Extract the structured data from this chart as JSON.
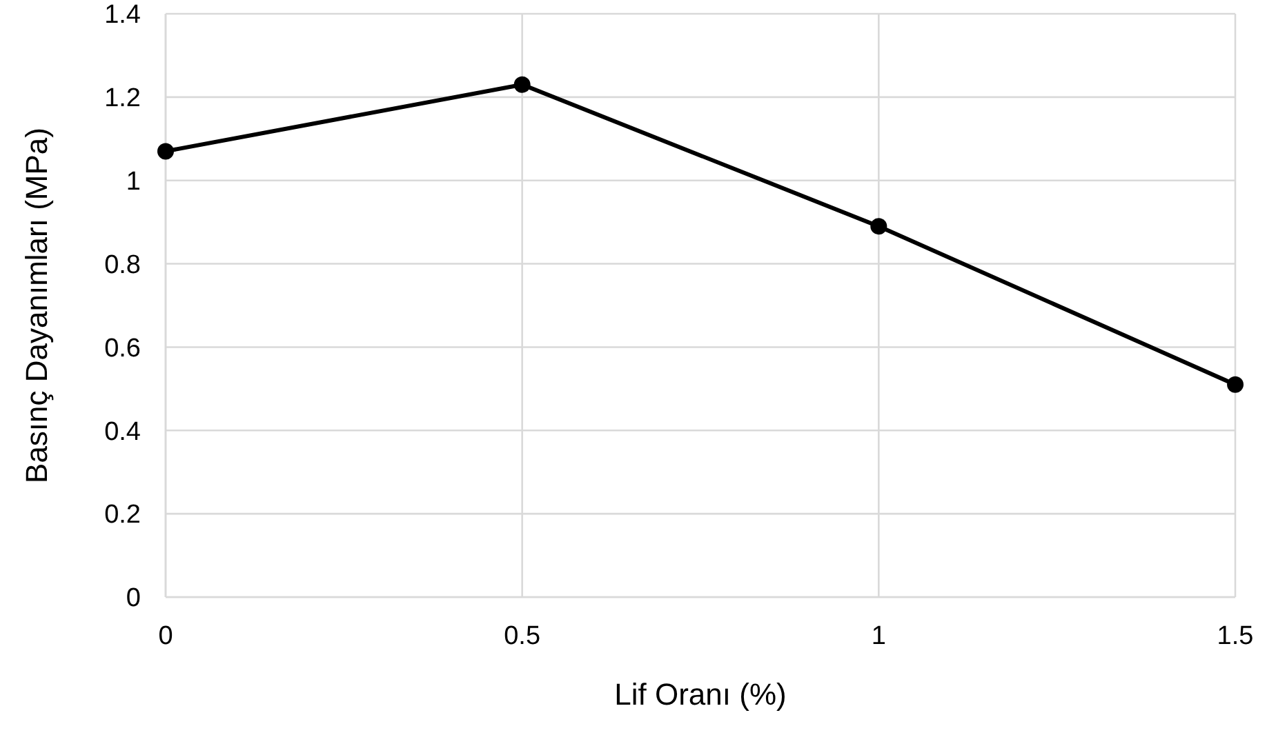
{
  "chart_data": {
    "type": "line",
    "xlabel": "Lif Oranı  (%)",
    "ylabel": "Basınç Dayanımları  (MPa)",
    "x": [
      0,
      0.5,
      1,
      1.5
    ],
    "series": [
      {
        "color": "#000000",
        "values": [
          1.07,
          1.23,
          0.89,
          0.51
        ]
      }
    ],
    "xlim": [
      0,
      1.5
    ],
    "xticks": [
      0,
      0.5,
      1,
      1.5
    ],
    "ylim": [
      0,
      1.4
    ],
    "yticks": [
      0,
      0.2,
      0.4,
      0.6,
      0.8,
      1,
      1.2,
      1.4
    ],
    "grid": true,
    "marker": "circle",
    "line_style": "solid"
  }
}
